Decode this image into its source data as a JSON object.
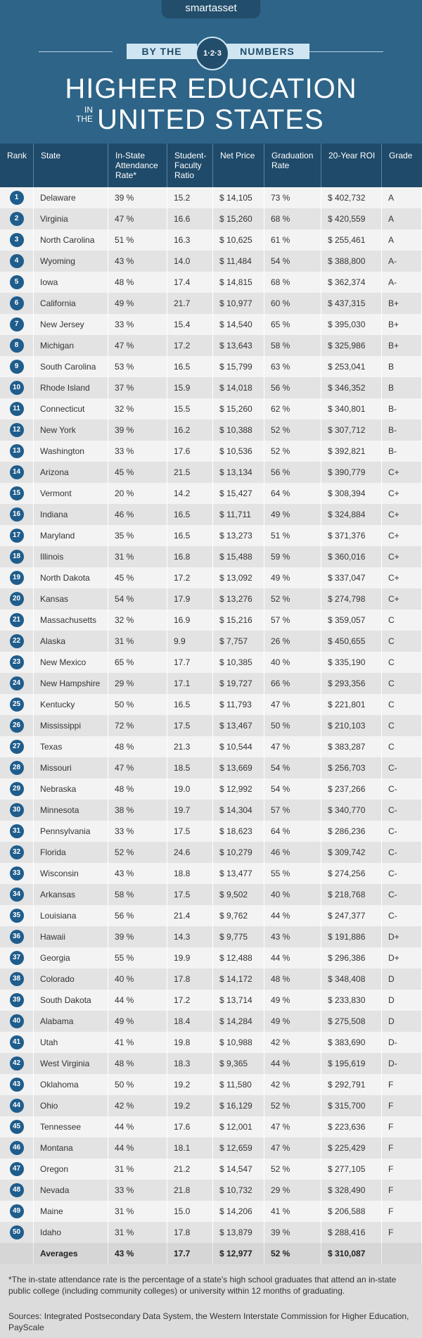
{
  "header": {
    "logo": "smartasset",
    "banner_left": "BY THE",
    "badge": "1·2·3",
    "banner_right": "NUMBERS",
    "title_line1": "HIGHER EDUCATION",
    "title_small": "IN THE",
    "title_line2": "UNITED STATES"
  },
  "table": {
    "columns": [
      "Rank",
      "State",
      "In-State Attendance Rate*",
      "Student-Faculty Ratio",
      "Net Price",
      "Graduation Rate",
      "20-Year ROI",
      "Grade"
    ],
    "rows": [
      [
        1,
        "Delaware",
        "39 %",
        "15.2",
        "$ 14,105",
        "73 %",
        "$ 402,732",
        "A"
      ],
      [
        2,
        "Virginia",
        "47 %",
        "16.6",
        "$ 15,260",
        "68 %",
        "$ 420,559",
        "A"
      ],
      [
        3,
        "North Carolina",
        "51 %",
        "16.3",
        "$ 10,625",
        "61 %",
        "$ 255,461",
        "A"
      ],
      [
        4,
        "Wyoming",
        "43 %",
        "14.0",
        "$ 11,484",
        "54 %",
        "$ 388,800",
        "A-"
      ],
      [
        5,
        "Iowa",
        "48 %",
        "17.4",
        "$ 14,815",
        "68 %",
        "$ 362,374",
        "A-"
      ],
      [
        6,
        "California",
        "49 %",
        "21.7",
        "$ 10,977",
        "60 %",
        "$ 437,315",
        "B+"
      ],
      [
        7,
        "New Jersey",
        "33 %",
        "15.4",
        "$ 14,540",
        "65 %",
        "$ 395,030",
        "B+"
      ],
      [
        8,
        "Michigan",
        "47 %",
        "17.2",
        "$ 13,643",
        "58 %",
        "$ 325,986",
        "B+"
      ],
      [
        9,
        "South Carolina",
        "53 %",
        "16.5",
        "$ 15,799",
        "63 %",
        "$ 253,041",
        "B"
      ],
      [
        10,
        "Rhode Island",
        "37 %",
        "15.9",
        "$ 14,018",
        "56 %",
        "$ 346,352",
        "B"
      ],
      [
        11,
        "Connecticut",
        "32 %",
        "15.5",
        "$ 15,260",
        "62 %",
        "$ 340,801",
        "B-"
      ],
      [
        12,
        "New York",
        "39 %",
        "16.2",
        "$ 10,388",
        "52 %",
        "$ 307,712",
        "B-"
      ],
      [
        13,
        "Washington",
        "33 %",
        "17.6",
        "$ 10,536",
        "52 %",
        "$ 392,821",
        "B-"
      ],
      [
        14,
        "Arizona",
        "45 %",
        "21.5",
        "$ 13,134",
        "56 %",
        "$ 390,779",
        "C+"
      ],
      [
        15,
        "Vermont",
        "20 %",
        "14.2",
        "$ 15,427",
        "64 %",
        "$ 308,394",
        "C+"
      ],
      [
        16,
        "Indiana",
        "46 %",
        "16.5",
        "$ 11,711",
        "49 %",
        "$ 324,884",
        "C+"
      ],
      [
        17,
        "Maryland",
        "35 %",
        "16.5",
        "$ 13,273",
        "51 %",
        "$ 371,376",
        "C+"
      ],
      [
        18,
        "Illinois",
        "31 %",
        "16.8",
        "$ 15,488",
        "59 %",
        "$ 360,016",
        "C+"
      ],
      [
        19,
        "North Dakota",
        "45 %",
        "17.2",
        "$ 13,092",
        "49 %",
        "$ 337,047",
        "C+"
      ],
      [
        20,
        "Kansas",
        "54 %",
        "17.9",
        "$ 13,276",
        "52 %",
        "$ 274,798",
        "C+"
      ],
      [
        21,
        "Massachusetts",
        "32 %",
        "16.9",
        "$ 15,216",
        "57 %",
        "$ 359,057",
        "C"
      ],
      [
        22,
        "Alaska",
        "31 %",
        "9.9",
        "$ 7,757",
        "26 %",
        "$ 450,655",
        "C"
      ],
      [
        23,
        "New Mexico",
        "65 %",
        "17.7",
        "$ 10,385",
        "40 %",
        "$ 335,190",
        "C"
      ],
      [
        24,
        "New Hampshire",
        "29 %",
        "17.1",
        "$ 19,727",
        "66 %",
        "$ 293,356",
        "C"
      ],
      [
        25,
        "Kentucky",
        "50 %",
        "16.5",
        "$ 11,793",
        "47 %",
        "$ 221,801",
        "C"
      ],
      [
        26,
        "Mississippi",
        "72 %",
        "17.5",
        "$ 13,467",
        "50 %",
        "$ 210,103",
        "C"
      ],
      [
        27,
        "Texas",
        "48 %",
        "21.3",
        "$ 10,544",
        "47 %",
        "$ 383,287",
        "C"
      ],
      [
        28,
        "Missouri",
        "47 %",
        "18.5",
        "$ 13,669",
        "54 %",
        "$ 256,703",
        "C-"
      ],
      [
        29,
        "Nebraska",
        "48 %",
        "19.0",
        "$ 12,992",
        "54 %",
        "$ 237,266",
        "C-"
      ],
      [
        30,
        "Minnesota",
        "38 %",
        "19.7",
        "$ 14,304",
        "57 %",
        "$ 340,770",
        "C-"
      ],
      [
        31,
        "Pennsylvania",
        "33 %",
        "17.5",
        "$ 18,623",
        "64 %",
        "$ 286,236",
        "C-"
      ],
      [
        32,
        "Florida",
        "52 %",
        "24.6",
        "$ 10,279",
        "46 %",
        "$ 309,742",
        "C-"
      ],
      [
        33,
        "Wisconsin",
        "43 %",
        "18.8",
        "$ 13,477",
        "55 %",
        "$ 274,256",
        "C-"
      ],
      [
        34,
        "Arkansas",
        "58 %",
        "17.5",
        "$ 9,502",
        "40 %",
        "$ 218,768",
        "C-"
      ],
      [
        35,
        "Louisiana",
        "56 %",
        "21.4",
        "$ 9,762",
        "44 %",
        "$ 247,377",
        "C-"
      ],
      [
        36,
        "Hawaii",
        "39 %",
        "14.3",
        "$ 9,775",
        "43 %",
        "$ 191,886",
        "D+"
      ],
      [
        37,
        "Georgia",
        "55 %",
        "19.9",
        "$ 12,488",
        "44 %",
        "$ 296,386",
        "D+"
      ],
      [
        38,
        "Colorado",
        "40 %",
        "17.8",
        "$ 14,172",
        "48 %",
        "$ 348,408",
        "D"
      ],
      [
        39,
        "South Dakota",
        "44 %",
        "17.2",
        "$ 13,714",
        "49 %",
        "$ 233,830",
        "D"
      ],
      [
        40,
        "Alabama",
        "49 %",
        "18.4",
        "$ 14,284",
        "49 %",
        "$ 275,508",
        "D"
      ],
      [
        41,
        "Utah",
        "41 %",
        "19.8",
        "$ 10,988",
        "42 %",
        "$ 383,690",
        "D-"
      ],
      [
        42,
        "West Virginia",
        "48 %",
        "18.3",
        "$ 9,365",
        "44 %",
        "$ 195,619",
        "D-"
      ],
      [
        43,
        "Oklahoma",
        "50 %",
        "19.2",
        "$ 11,580",
        "42 %",
        "$ 292,791",
        "F"
      ],
      [
        44,
        "Ohio",
        "42 %",
        "19.2",
        "$ 16,129",
        "52 %",
        "$ 315,700",
        "F"
      ],
      [
        45,
        "Tennessee",
        "44 %",
        "17.6",
        "$ 12,001",
        "47 %",
        "$ 223,636",
        "F"
      ],
      [
        46,
        "Montana",
        "44 %",
        "18.1",
        "$ 12,659",
        "47 %",
        "$ 225,429",
        "F"
      ],
      [
        47,
        "Oregon",
        "31 %",
        "21.2",
        "$ 14,547",
        "52 %",
        "$ 277,105",
        "F"
      ],
      [
        48,
        "Nevada",
        "33 %",
        "21.8",
        "$ 10,732",
        "29 %",
        "$ 328,490",
        "F"
      ],
      [
        49,
        "Maine",
        "31 %",
        "15.0",
        "$ 14,206",
        "41 %",
        "$ 206,588",
        "F"
      ],
      [
        50,
        "Idaho",
        "31 %",
        "17.8",
        "$ 13,879",
        "39 %",
        "$ 288,416",
        "F"
      ]
    ],
    "averages": [
      "Averages",
      "43 %",
      "17.7",
      "$ 12,977",
      "52 %",
      "$ 310,087"
    ]
  },
  "footer": {
    "note": "*The in-state attendance rate is the percentage of a state's high school graduates that attend an in-state public college (including community colleges) or university within 12 months of graduating.",
    "sources": "Sources: Integrated Postsecondary Data System,  the Western Interstate Commission for Higher Education, PayScale"
  }
}
